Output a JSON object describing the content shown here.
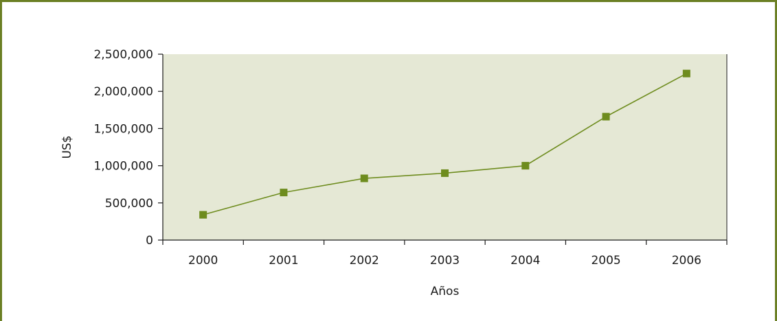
{
  "chart_data": {
    "type": "line",
    "title": "",
    "xlabel": "Años",
    "ylabel": "US$",
    "categories": [
      "2000",
      "2001",
      "2002",
      "2003",
      "2004",
      "2005",
      "2006"
    ],
    "series": [
      {
        "values": [
          340000,
          640000,
          830000,
          900000,
          1000000,
          1660000,
          2240000
        ]
      }
    ],
    "ylim": [
      0,
      2500000
    ],
    "y_ticks": [
      "0",
      "500,000",
      "1,000,000",
      "1,500,000",
      "2,000,000",
      "2,500,000"
    ],
    "y_tick_values": [
      0,
      500000,
      1000000,
      1500000,
      2000000,
      2500000
    ],
    "grid": false,
    "legend": "none",
    "colors": {
      "plot_background": "#e5e8d5",
      "series": "#6e8c1e",
      "frame_border": "#6b7f24",
      "axis": "#1a1a1a"
    }
  }
}
